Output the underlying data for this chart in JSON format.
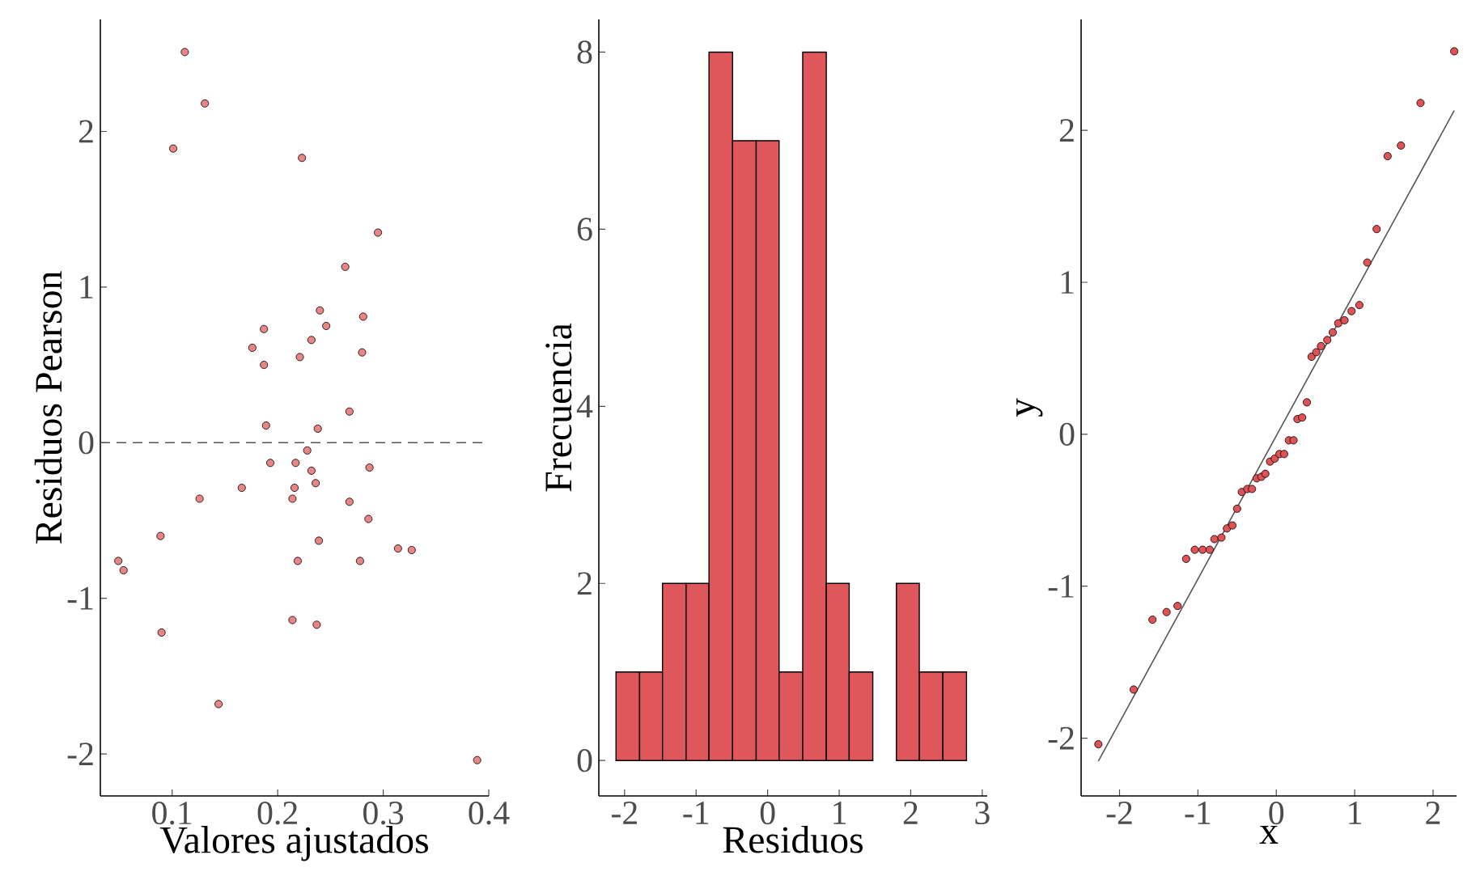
{
  "chart_data": [
    {
      "type": "scatter",
      "xlabel": "Valores ajustados",
      "ylabel": "Residuos Pearson",
      "color": "#e88585",
      "x": [
        0.112,
        0.131,
        0.101,
        0.223,
        0.295,
        0.264,
        0.24,
        0.281,
        0.246,
        0.187,
        0.232,
        0.176,
        0.221,
        0.28,
        0.187,
        0.268,
        0.189,
        0.238,
        0.228,
        0.193,
        0.217,
        0.287,
        0.232,
        0.236,
        0.216,
        0.166,
        0.126,
        0.214,
        0.268,
        0.286,
        0.089,
        0.239,
        0.314,
        0.327,
        0.049,
        0.219,
        0.278,
        0.054,
        0.214,
        0.237,
        0.09,
        0.144,
        0.389
      ],
      "values": [
        2.51,
        2.18,
        1.89,
        1.83,
        1.35,
        1.13,
        0.85,
        0.81,
        0.75,
        0.73,
        0.66,
        0.61,
        0.55,
        0.58,
        0.5,
        0.2,
        0.11,
        0.09,
        -0.05,
        -0.13,
        -0.13,
        -0.16,
        -0.18,
        -0.26,
        -0.29,
        -0.29,
        -0.36,
        -0.36,
        -0.38,
        -0.49,
        -0.6,
        -0.63,
        -0.68,
        -0.69,
        -0.76,
        -0.76,
        -0.76,
        -0.82,
        -1.14,
        -1.17,
        -1.22,
        -1.68,
        -2.04
      ],
      "xlim": [
        0.032,
        0.4
      ],
      "ylim": [
        -2.27,
        2.72
      ],
      "xticks": [
        0.1,
        0.2,
        0.3,
        0.4
      ],
      "yticks": [
        -2,
        -1,
        0,
        1,
        2
      ],
      "ref_lines": [
        {
          "axis": "y",
          "value": 0,
          "line_style": "dashed",
          "color": "#555555"
        }
      ]
    },
    {
      "type": "histogram",
      "xlabel": "Residuos",
      "ylabel": "Frecuencia",
      "color": "#e0575b",
      "bins": [
        -2.12,
        -1.79,
        -1.47,
        -1.14,
        -0.82,
        -0.49,
        -0.16,
        0.16,
        0.49,
        0.82,
        1.14,
        1.47,
        1.8,
        2.12,
        2.45,
        2.78
      ],
      "values": [
        1,
        1,
        2,
        2,
        8,
        7,
        7,
        1,
        8,
        2,
        1,
        0,
        2,
        1,
        1
      ],
      "xlim": [
        -2.36,
        3.07
      ],
      "ylim": [
        -0.4,
        8.37
      ],
      "xticks": [
        -2,
        -1,
        0,
        1,
        2,
        3
      ],
      "yticks": [
        0,
        2,
        4,
        6,
        8
      ]
    },
    {
      "type": "scatter",
      "xlabel": "x",
      "ylabel": "y",
      "xlim": [
        -2.49,
        2.3
      ],
      "ylim": [
        -2.38,
        2.73
      ],
      "xticks": [
        -2,
        -1,
        0,
        1,
        2
      ],
      "yticks": [
        -2,
        -1,
        0,
        1,
        2
      ],
      "series": [
        {
          "type": "scatter",
          "color": "#df5357",
          "x": [
            -2.27,
            -1.82,
            -1.58,
            -1.4,
            -1.26,
            -1.15,
            -1.04,
            -0.94,
            -0.85,
            -0.79,
            -0.7,
            -0.63,
            -0.56,
            -0.5,
            -0.44,
            -0.37,
            -0.31,
            -0.25,
            -0.19,
            -0.14,
            -0.08,
            -0.02,
            0.04,
            0.1,
            0.16,
            0.22,
            0.27,
            0.33,
            0.39,
            0.45,
            0.51,
            0.57,
            0.65,
            0.72,
            0.79,
            0.87,
            0.96,
            1.06,
            1.16,
            1.28,
            1.42,
            1.59,
            1.84,
            2.27
          ],
          "values": [
            -2.04,
            -1.68,
            -1.22,
            -1.17,
            -1.13,
            -0.82,
            -0.76,
            -0.76,
            -0.76,
            -0.69,
            -0.68,
            -0.62,
            -0.6,
            -0.49,
            -0.38,
            -0.36,
            -0.36,
            -0.29,
            -0.28,
            -0.26,
            -0.18,
            -0.16,
            -0.13,
            -0.13,
            -0.04,
            -0.04,
            0.1,
            0.11,
            0.21,
            0.51,
            0.54,
            0.58,
            0.62,
            0.67,
            0.73,
            0.75,
            0.81,
            0.85,
            1.13,
            1.35,
            1.83,
            1.9,
            2.18,
            2.52
          ]
        },
        {
          "type": "line",
          "color": "#555555",
          "x": [
            -2.27,
            2.27
          ],
          "values": [
            -2.15,
            2.13
          ]
        }
      ]
    }
  ]
}
